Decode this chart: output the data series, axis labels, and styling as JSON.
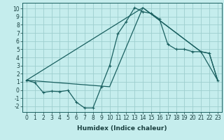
{
  "xlabel": "Humidex (Indice chaleur)",
  "bg_color": "#c5eded",
  "grid_color": "#9ecece",
  "line_color": "#1a6060",
  "xlim": [
    -0.5,
    23.5
  ],
  "ylim": [
    -2.7,
    10.7
  ],
  "xticks": [
    0,
    1,
    2,
    3,
    4,
    5,
    6,
    7,
    8,
    9,
    10,
    11,
    12,
    13,
    14,
    15,
    16,
    17,
    18,
    19,
    20,
    21,
    22,
    23
  ],
  "yticks": [
    -2,
    -1,
    0,
    1,
    2,
    3,
    4,
    5,
    6,
    7,
    8,
    9,
    10
  ],
  "line1_x": [
    0,
    1,
    2,
    3,
    4,
    5,
    6,
    7,
    8,
    9,
    10,
    11,
    12,
    13,
    14,
    15,
    16,
    17,
    18,
    19,
    20,
    21,
    22,
    23
  ],
  "line1_y": [
    1.2,
    0.9,
    -0.3,
    -0.15,
    -0.2,
    -0.05,
    -1.5,
    -2.2,
    -2.2,
    0.4,
    3.0,
    6.9,
    8.4,
    10.1,
    9.6,
    9.4,
    8.7,
    5.6,
    5.0,
    5.0,
    4.7,
    4.7,
    4.5,
    1.2
  ],
  "line2_x": [
    0,
    14,
    21,
    23
  ],
  "line2_y": [
    1.2,
    10.1,
    4.7,
    1.2
  ],
  "line3_x": [
    0,
    10,
    14,
    21,
    22,
    23
  ],
  "line3_y": [
    1.2,
    0.4,
    10.1,
    4.7,
    4.5,
    1.2
  ],
  "xlabel_fontsize": 6.5,
  "tick_fontsize": 5.5,
  "linewidth": 0.9,
  "markersize": 3.5
}
